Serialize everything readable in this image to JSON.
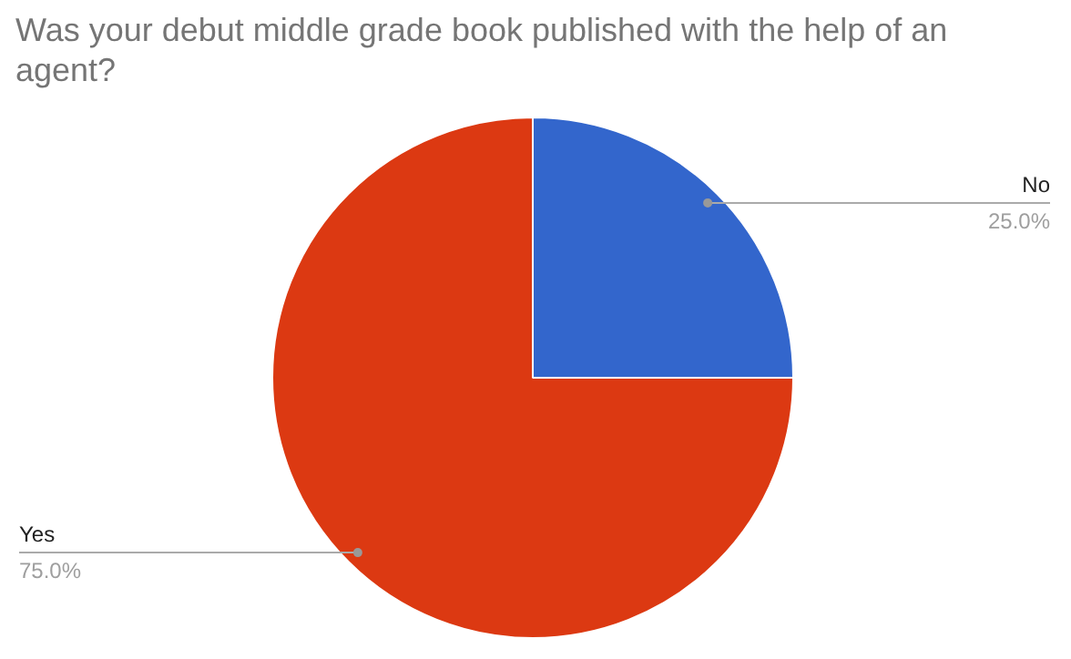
{
  "chart_data": {
    "type": "pie",
    "title": "Was your debut middle grade book published with the help of an agent?",
    "categories": [
      "No",
      "Yes"
    ],
    "values": [
      25,
      75
    ],
    "colors": [
      "#3366cc",
      "#dc3912"
    ],
    "value_labels": [
      "25.0%",
      "75.0%"
    ]
  }
}
